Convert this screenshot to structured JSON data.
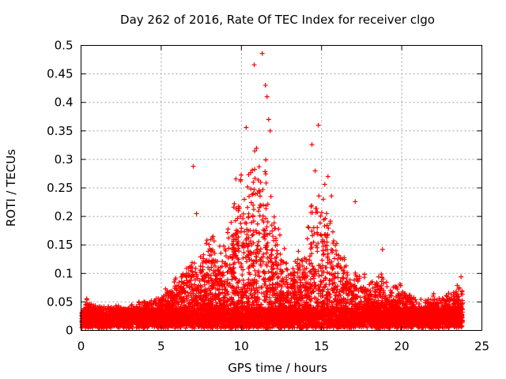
{
  "chart_data": {
    "type": "scatter",
    "title": "Day 262 of 2016, Rate Of TEC Index for receiver clgo",
    "xlabel": "GPS time / hours",
    "ylabel": "ROTI / TECUs",
    "xlim": [
      0,
      25
    ],
    "ylim": [
      0,
      0.5
    ],
    "xticks": [
      0,
      5,
      10,
      15,
      20,
      25
    ],
    "xtick_labels": [
      "0",
      "5",
      "10",
      "15",
      "20",
      "25"
    ],
    "yticks": [
      0,
      0.05,
      0.1,
      0.15,
      0.2,
      0.25,
      0.3,
      0.35,
      0.4,
      0.45,
      0.5
    ],
    "ytick_labels": [
      "0",
      "0.05",
      "0.1",
      "0.15",
      "0.2",
      "0.25",
      "0.3",
      "0.35",
      "0.4",
      "0.45",
      "0.5"
    ],
    "grid": true,
    "marker": "plus",
    "color": "#ff0000",
    "envelope": {
      "description_hours": [
        0,
        0.3,
        1,
        2,
        3,
        4,
        5,
        5.5,
        6,
        6.5,
        7,
        7.5,
        8,
        8.5,
        9,
        9.5,
        10,
        10.5,
        11,
        11.5,
        12,
        12.5,
        13,
        13.5,
        14,
        14.5,
        15,
        15.5,
        16,
        16.5,
        17,
        17.5,
        18,
        18.5,
        19,
        19.5,
        20,
        20.5,
        21,
        21.5,
        22,
        22.5,
        23,
        23.5,
        23.8
      ],
      "typical_upper": [
        0.03,
        0.05,
        0.04,
        0.04,
        0.04,
        0.05,
        0.06,
        0.08,
        0.09,
        0.1,
        0.12,
        0.14,
        0.15,
        0.14,
        0.16,
        0.22,
        0.24,
        0.27,
        0.3,
        0.26,
        0.2,
        0.14,
        0.1,
        0.12,
        0.15,
        0.22,
        0.25,
        0.22,
        0.16,
        0.12,
        0.1,
        0.09,
        0.08,
        0.12,
        0.08,
        0.07,
        0.08,
        0.06,
        0.05,
        0.05,
        0.06,
        0.06,
        0.06,
        0.07,
        0.08
      ]
    },
    "notable_points": [
      {
        "x": 7.0,
        "y": 0.288
      },
      {
        "x": 7.2,
        "y": 0.205
      },
      {
        "x": 10.3,
        "y": 0.356
      },
      {
        "x": 10.8,
        "y": 0.466
      },
      {
        "x": 11.3,
        "y": 0.486
      },
      {
        "x": 11.5,
        "y": 0.43
      },
      {
        "x": 11.6,
        "y": 0.41
      },
      {
        "x": 11.7,
        "y": 0.37
      },
      {
        "x": 11.8,
        "y": 0.35
      },
      {
        "x": 14.4,
        "y": 0.326
      },
      {
        "x": 14.8,
        "y": 0.36
      },
      {
        "x": 14.6,
        "y": 0.28
      },
      {
        "x": 15.4,
        "y": 0.27
      },
      {
        "x": 17.1,
        "y": 0.226
      },
      {
        "x": 18.8,
        "y": 0.142
      },
      {
        "x": 23.7,
        "y": 0.094
      }
    ]
  }
}
